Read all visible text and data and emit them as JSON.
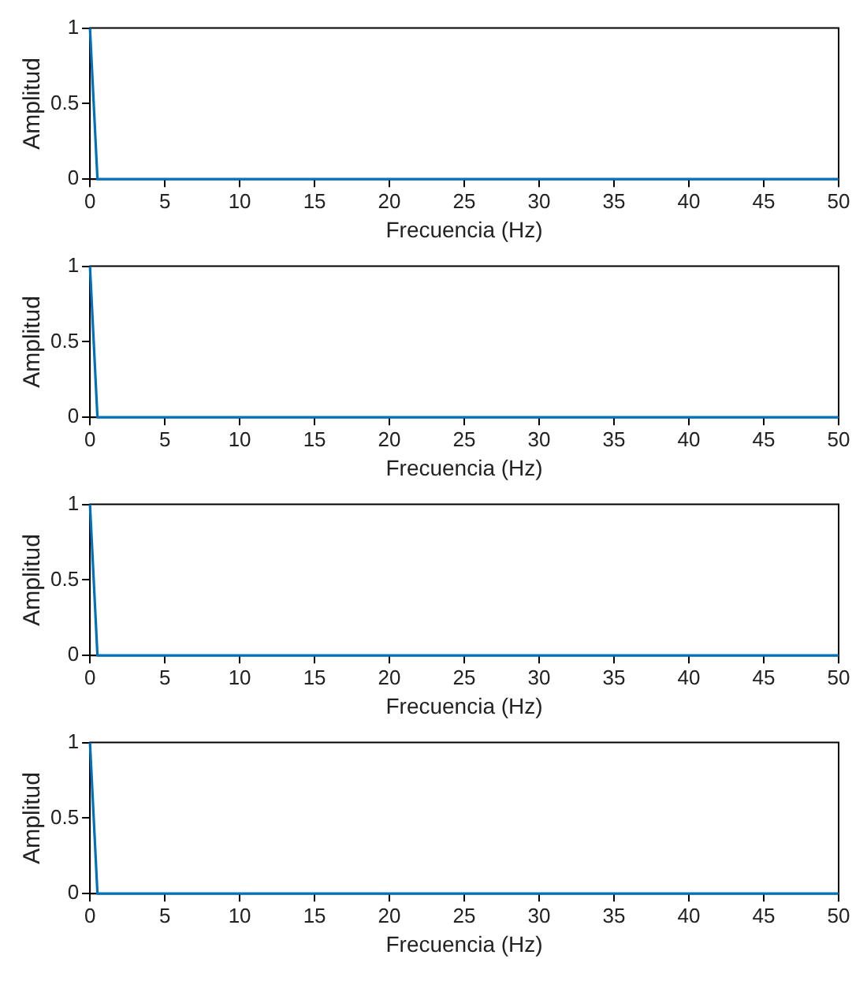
{
  "chart_data": [
    {
      "type": "line",
      "xlabel": "Frecuencia (Hz)",
      "ylabel": "Amplitud",
      "x": [
        0,
        0.5,
        50
      ],
      "series": [
        {
          "color": "#0072bd",
          "values": [
            1,
            0,
            0
          ]
        }
      ],
      "xlim": [
        0,
        50
      ],
      "xticks": [
        0,
        5,
        10,
        15,
        20,
        25,
        30,
        35,
        40,
        45,
        50
      ],
      "ylim": [
        0,
        1
      ],
      "yticks": [
        0,
        0.5,
        1
      ],
      "grid": false,
      "legend": false
    },
    {
      "type": "line",
      "xlabel": "Frecuencia (Hz)",
      "ylabel": "Amplitud",
      "x": [
        0,
        0.5,
        50
      ],
      "series": [
        {
          "color": "#0072bd",
          "values": [
            1,
            0,
            0
          ]
        }
      ],
      "xlim": [
        0,
        50
      ],
      "xticks": [
        0,
        5,
        10,
        15,
        20,
        25,
        30,
        35,
        40,
        45,
        50
      ],
      "ylim": [
        0,
        1
      ],
      "yticks": [
        0,
        0.5,
        1
      ],
      "grid": false,
      "legend": false
    },
    {
      "type": "line",
      "xlabel": "Frecuencia (Hz)",
      "ylabel": "Amplitud",
      "x": [
        0,
        0.5,
        50
      ],
      "series": [
        {
          "color": "#0072bd",
          "values": [
            1,
            0,
            0
          ]
        }
      ],
      "xlim": [
        0,
        50
      ],
      "xticks": [
        0,
        5,
        10,
        15,
        20,
        25,
        30,
        35,
        40,
        45,
        50
      ],
      "ylim": [
        0,
        1
      ],
      "yticks": [
        0,
        0.5,
        1
      ],
      "grid": false,
      "legend": false
    },
    {
      "type": "line",
      "xlabel": "Frecuencia (Hz)",
      "ylabel": "Amplitud",
      "x": [
        0,
        0.5,
        50
      ],
      "series": [
        {
          "color": "#0072bd",
          "values": [
            1,
            0,
            0
          ]
        }
      ],
      "xlim": [
        0,
        50
      ],
      "xticks": [
        0,
        5,
        10,
        15,
        20,
        25,
        30,
        35,
        40,
        45,
        50
      ],
      "ylim": [
        0,
        1
      ],
      "yticks": [
        0,
        0.5,
        1
      ],
      "grid": false,
      "legend": false
    }
  ]
}
